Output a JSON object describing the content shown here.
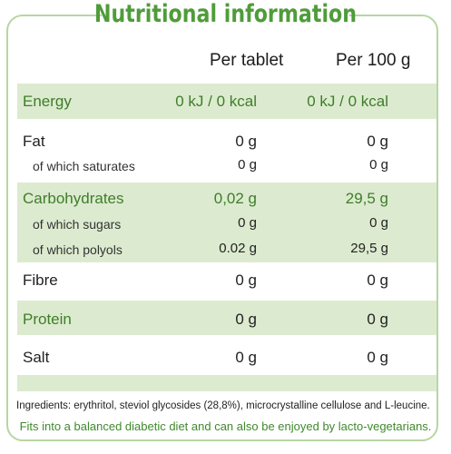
{
  "title": "Nutritional information",
  "columns": {
    "per_tablet": "Per tablet",
    "per_100g": "Per 100 g"
  },
  "rows": {
    "energy": {
      "label": "Energy",
      "per_tablet": "0 kJ / 0 kcal",
      "per_100g": "0 kJ / 0 kcal"
    },
    "fat": {
      "label": "Fat",
      "per_tablet": "0 g",
      "per_100g": "0 g"
    },
    "saturates": {
      "label": "of which saturates",
      "per_tablet": "0 g",
      "per_100g": "0 g"
    },
    "carbohydrates": {
      "label": "Carbohydrates",
      "per_tablet": "0,02 g",
      "per_100g": "29,5 g"
    },
    "sugars": {
      "label": "of which sugars",
      "per_tablet": "0 g",
      "per_100g": "0 g"
    },
    "polyols": {
      "label": "of which polyols",
      "per_tablet": "0.02 g",
      "per_100g": "29,5 g"
    },
    "fibre": {
      "label": "Fibre",
      "per_tablet": "0 g",
      "per_100g": "0 g"
    },
    "protein": {
      "label": "Protein",
      "per_tablet": "0 g",
      "per_100g": "0 g"
    },
    "salt": {
      "label": "Salt",
      "per_tablet": "0 g",
      "per_100g": "0 g"
    }
  },
  "ingredients": "Ingredients: erythritol, steviol glycosides (28,8%), microcrystalline cellulose and L-leucine.",
  "note": "Fits into a balanced diabetic diet and can also be enjoyed by lacto-vegetarians.",
  "colors": {
    "title_green": "#4f9c3a",
    "band_green": "#dcebcf",
    "frame_green": "#b7d6a3",
    "label_green": "#3f7d2b"
  }
}
